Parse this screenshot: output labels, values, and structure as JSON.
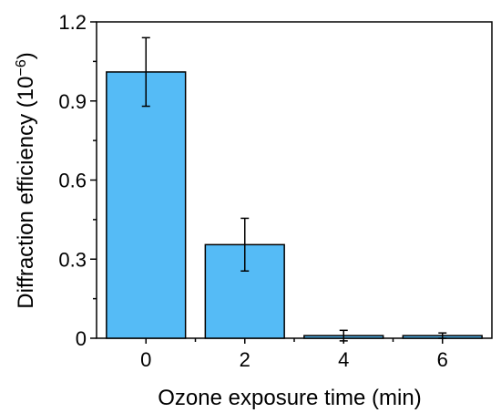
{
  "chart_data": {
    "type": "bar",
    "categories": [
      "0",
      "2",
      "4",
      "6"
    ],
    "values": [
      1.01,
      0.355,
      0.01,
      0.01
    ],
    "errors": [
      0.13,
      0.1,
      0.02,
      0.01
    ],
    "xlabel": "Ozone exposure time (min)",
    "ylabel_text": "Diffraction efficiency (10",
    "ylabel_exponent": "−6",
    "ylabel_close": ")",
    "ylim": [
      0,
      1.2
    ],
    "yticks": [
      "0",
      "0.3",
      "0.6",
      "0.9",
      "1.2"
    ],
    "grid": false,
    "bar_color": "#55bbf6",
    "edge_color": "#000000"
  }
}
